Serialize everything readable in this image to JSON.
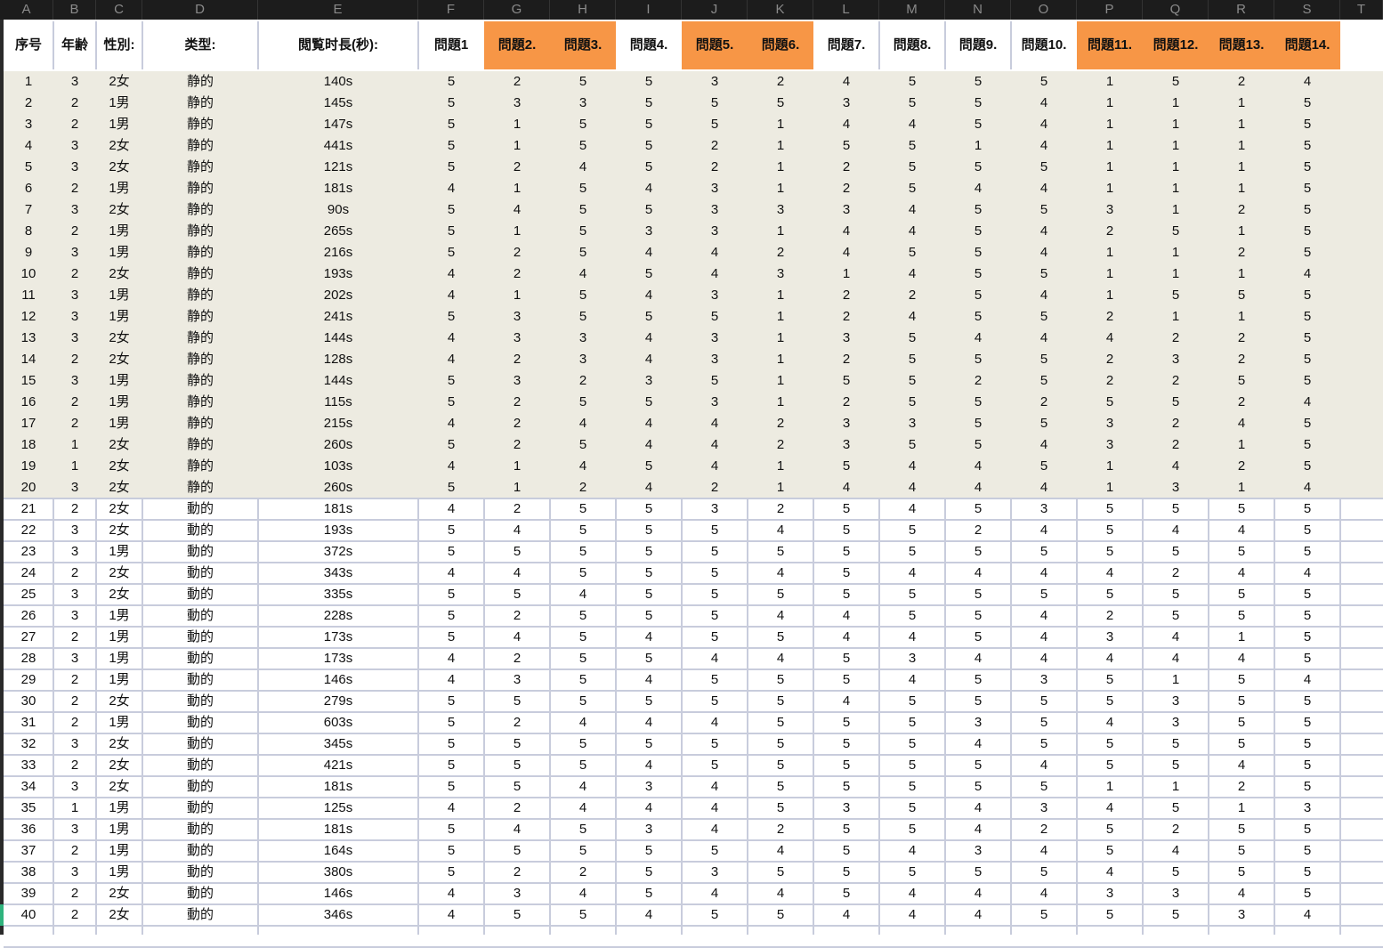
{
  "column_letters": [
    "A",
    "B",
    "C",
    "D",
    "E",
    "F",
    "G",
    "H",
    "I",
    "J",
    "K",
    "L",
    "M",
    "N",
    "O",
    "P",
    "Q",
    "R",
    "S",
    "T"
  ],
  "headers": [
    "序号",
    "年齢",
    "性別:",
    "类型:",
    "閲覧时長(秒):",
    "問題1",
    "問題2.",
    "問題3.",
    "問題4.",
    "問題5.",
    "問題6.",
    "問題7.",
    "問題8.",
    "問題9.",
    "問題10.",
    "問題11.",
    "問題12.",
    "問題13.",
    "問題14."
  ],
  "highlighted_header_columns": [
    "G",
    "H",
    "J",
    "K",
    "P",
    "Q",
    "R",
    "S"
  ],
  "colors": {
    "header_highlight": "#f79646",
    "static_group_band": "#edebe1",
    "gridline": "#c8ccdc",
    "selected_row_marker": "#2fb37d"
  },
  "rows": [
    [
      "1",
      "3",
      "2女",
      "静的",
      "140s",
      "5",
      "2",
      "5",
      "5",
      "3",
      "2",
      "4",
      "5",
      "5",
      "5",
      "1",
      "5",
      "2",
      "4"
    ],
    [
      "2",
      "2",
      "1男",
      "静的",
      "145s",
      "5",
      "3",
      "3",
      "5",
      "5",
      "5",
      "3",
      "5",
      "5",
      "4",
      "1",
      "1",
      "1",
      "5"
    ],
    [
      "3",
      "2",
      "1男",
      "静的",
      "147s",
      "5",
      "1",
      "5",
      "5",
      "5",
      "1",
      "4",
      "4",
      "5",
      "4",
      "1",
      "1",
      "1",
      "5"
    ],
    [
      "4",
      "3",
      "2女",
      "静的",
      "441s",
      "5",
      "1",
      "5",
      "5",
      "2",
      "1",
      "5",
      "5",
      "1",
      "4",
      "1",
      "1",
      "1",
      "5"
    ],
    [
      "5",
      "3",
      "2女",
      "静的",
      "121s",
      "5",
      "2",
      "4",
      "5",
      "2",
      "1",
      "2",
      "5",
      "5",
      "5",
      "1",
      "1",
      "1",
      "5"
    ],
    [
      "6",
      "2",
      "1男",
      "静的",
      "181s",
      "4",
      "1",
      "5",
      "4",
      "3",
      "1",
      "2",
      "5",
      "4",
      "4",
      "1",
      "1",
      "1",
      "5"
    ],
    [
      "7",
      "3",
      "2女",
      "静的",
      "90s",
      "5",
      "4",
      "5",
      "5",
      "3",
      "3",
      "3",
      "4",
      "5",
      "5",
      "3",
      "1",
      "2",
      "5"
    ],
    [
      "8",
      "2",
      "1男",
      "静的",
      "265s",
      "5",
      "1",
      "5",
      "3",
      "3",
      "1",
      "4",
      "4",
      "5",
      "4",
      "2",
      "5",
      "1",
      "5"
    ],
    [
      "9",
      "3",
      "1男",
      "静的",
      "216s",
      "5",
      "2",
      "5",
      "4",
      "4",
      "2",
      "4",
      "5",
      "5",
      "4",
      "1",
      "1",
      "2",
      "5"
    ],
    [
      "10",
      "2",
      "2女",
      "静的",
      "193s",
      "4",
      "2",
      "4",
      "5",
      "4",
      "3",
      "1",
      "4",
      "5",
      "5",
      "1",
      "1",
      "1",
      "4"
    ],
    [
      "11",
      "3",
      "1男",
      "静的",
      "202s",
      "4",
      "1",
      "5",
      "4",
      "3",
      "1",
      "2",
      "2",
      "5",
      "4",
      "1",
      "5",
      "5",
      "5"
    ],
    [
      "12",
      "3",
      "1男",
      "静的",
      "241s",
      "5",
      "3",
      "5",
      "5",
      "5",
      "1",
      "2",
      "4",
      "5",
      "5",
      "2",
      "1",
      "1",
      "5"
    ],
    [
      "13",
      "3",
      "2女",
      "静的",
      "144s",
      "4",
      "3",
      "3",
      "4",
      "3",
      "1",
      "3",
      "5",
      "4",
      "4",
      "4",
      "2",
      "2",
      "5"
    ],
    [
      "14",
      "2",
      "2女",
      "静的",
      "128s",
      "4",
      "2",
      "3",
      "4",
      "3",
      "1",
      "2",
      "5",
      "5",
      "5",
      "2",
      "3",
      "2",
      "5"
    ],
    [
      "15",
      "3",
      "1男",
      "静的",
      "144s",
      "5",
      "3",
      "2",
      "3",
      "5",
      "1",
      "5",
      "5",
      "2",
      "5",
      "2",
      "2",
      "5",
      "5"
    ],
    [
      "16",
      "2",
      "1男",
      "静的",
      "115s",
      "5",
      "2",
      "5",
      "5",
      "3",
      "1",
      "2",
      "5",
      "5",
      "2",
      "5",
      "5",
      "2",
      "4"
    ],
    [
      "17",
      "2",
      "1男",
      "静的",
      "215s",
      "4",
      "2",
      "4",
      "4",
      "4",
      "2",
      "3",
      "3",
      "5",
      "5",
      "3",
      "2",
      "4",
      "5"
    ],
    [
      "18",
      "1",
      "2女",
      "静的",
      "260s",
      "5",
      "2",
      "5",
      "4",
      "4",
      "2",
      "3",
      "5",
      "5",
      "4",
      "3",
      "2",
      "1",
      "5"
    ],
    [
      "19",
      "1",
      "2女",
      "静的",
      "103s",
      "4",
      "1",
      "4",
      "5",
      "4",
      "1",
      "5",
      "4",
      "4",
      "5",
      "1",
      "4",
      "2",
      "5"
    ],
    [
      "20",
      "3",
      "2女",
      "静的",
      "260s",
      "5",
      "1",
      "2",
      "4",
      "2",
      "1",
      "4",
      "4",
      "4",
      "4",
      "1",
      "3",
      "1",
      "4"
    ],
    [
      "21",
      "2",
      "2女",
      "動的",
      "181s",
      "4",
      "2",
      "5",
      "5",
      "3",
      "2",
      "5",
      "4",
      "5",
      "3",
      "5",
      "5",
      "5",
      "5"
    ],
    [
      "22",
      "3",
      "2女",
      "動的",
      "193s",
      "5",
      "4",
      "5",
      "5",
      "5",
      "4",
      "5",
      "5",
      "2",
      "4",
      "5",
      "4",
      "4",
      "5"
    ],
    [
      "23",
      "3",
      "1男",
      "動的",
      "372s",
      "5",
      "5",
      "5",
      "5",
      "5",
      "5",
      "5",
      "5",
      "5",
      "5",
      "5",
      "5",
      "5",
      "5"
    ],
    [
      "24",
      "2",
      "2女",
      "動的",
      "343s",
      "4",
      "4",
      "5",
      "5",
      "5",
      "4",
      "5",
      "4",
      "4",
      "4",
      "4",
      "2",
      "4",
      "4"
    ],
    [
      "25",
      "3",
      "2女",
      "動的",
      "335s",
      "5",
      "5",
      "4",
      "5",
      "5",
      "5",
      "5",
      "5",
      "5",
      "5",
      "5",
      "5",
      "5",
      "5"
    ],
    [
      "26",
      "3",
      "1男",
      "動的",
      "228s",
      "5",
      "2",
      "5",
      "5",
      "5",
      "4",
      "4",
      "5",
      "5",
      "4",
      "2",
      "5",
      "5",
      "5"
    ],
    [
      "27",
      "2",
      "1男",
      "動的",
      "173s",
      "5",
      "4",
      "5",
      "4",
      "5",
      "5",
      "4",
      "4",
      "5",
      "4",
      "3",
      "4",
      "1",
      "5"
    ],
    [
      "28",
      "3",
      "1男",
      "動的",
      "173s",
      "4",
      "2",
      "5",
      "5",
      "4",
      "4",
      "5",
      "3",
      "4",
      "4",
      "4",
      "4",
      "4",
      "5"
    ],
    [
      "29",
      "2",
      "1男",
      "動的",
      "146s",
      "4",
      "3",
      "5",
      "4",
      "5",
      "5",
      "5",
      "4",
      "5",
      "3",
      "5",
      "1",
      "5",
      "4"
    ],
    [
      "30",
      "2",
      "2女",
      "動的",
      "279s",
      "5",
      "5",
      "5",
      "5",
      "5",
      "5",
      "4",
      "5",
      "5",
      "5",
      "5",
      "3",
      "5",
      "5"
    ],
    [
      "31",
      "2",
      "1男",
      "動的",
      "603s",
      "5",
      "2",
      "4",
      "4",
      "4",
      "5",
      "5",
      "5",
      "3",
      "5",
      "4",
      "3",
      "5",
      "5"
    ],
    [
      "32",
      "3",
      "2女",
      "動的",
      "345s",
      "5",
      "5",
      "5",
      "5",
      "5",
      "5",
      "5",
      "5",
      "4",
      "5",
      "5",
      "5",
      "5",
      "5"
    ],
    [
      "33",
      "2",
      "2女",
      "動的",
      "421s",
      "5",
      "5",
      "5",
      "4",
      "5",
      "5",
      "5",
      "5",
      "5",
      "4",
      "5",
      "5",
      "4",
      "5"
    ],
    [
      "34",
      "3",
      "2女",
      "動的",
      "181s",
      "5",
      "5",
      "4",
      "3",
      "4",
      "5",
      "5",
      "5",
      "5",
      "5",
      "1",
      "1",
      "2",
      "5"
    ],
    [
      "35",
      "1",
      "1男",
      "動的",
      "125s",
      "4",
      "2",
      "4",
      "4",
      "4",
      "5",
      "3",
      "5",
      "4",
      "3",
      "4",
      "5",
      "1",
      "3"
    ],
    [
      "36",
      "3",
      "1男",
      "動的",
      "181s",
      "5",
      "4",
      "5",
      "3",
      "4",
      "2",
      "5",
      "5",
      "4",
      "2",
      "5",
      "2",
      "5",
      "5"
    ],
    [
      "37",
      "2",
      "1男",
      "動的",
      "164s",
      "5",
      "5",
      "5",
      "5",
      "5",
      "4",
      "5",
      "4",
      "3",
      "4",
      "5",
      "4",
      "5",
      "5"
    ],
    [
      "38",
      "3",
      "1男",
      "動的",
      "380s",
      "5",
      "2",
      "2",
      "5",
      "3",
      "5",
      "5",
      "5",
      "5",
      "5",
      "4",
      "5",
      "5",
      "5"
    ],
    [
      "39",
      "2",
      "2女",
      "動的",
      "146s",
      "4",
      "3",
      "4",
      "5",
      "4",
      "4",
      "5",
      "4",
      "4",
      "4",
      "3",
      "3",
      "4",
      "5"
    ],
    [
      "40",
      "2",
      "2女",
      "動的",
      "346s",
      "4",
      "5",
      "5",
      "4",
      "5",
      "5",
      "4",
      "4",
      "4",
      "5",
      "5",
      "5",
      "3",
      "4"
    ]
  ]
}
